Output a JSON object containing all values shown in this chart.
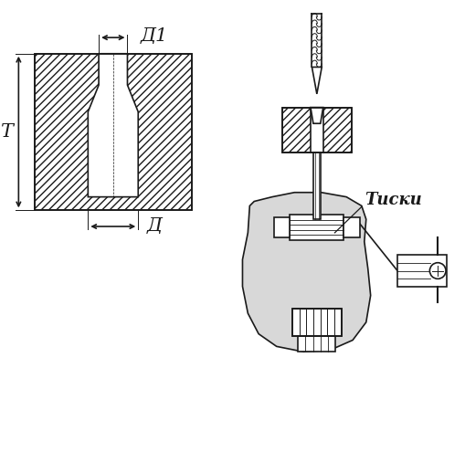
{
  "bg_color": "#ffffff",
  "line_color": "#1a1a1a",
  "label_T": "Т",
  "label_D": "Д",
  "label_D1": "Д1",
  "label_tisk": "Тиски",
  "figsize": [
    5.1,
    4.95
  ],
  "dpi": 100
}
